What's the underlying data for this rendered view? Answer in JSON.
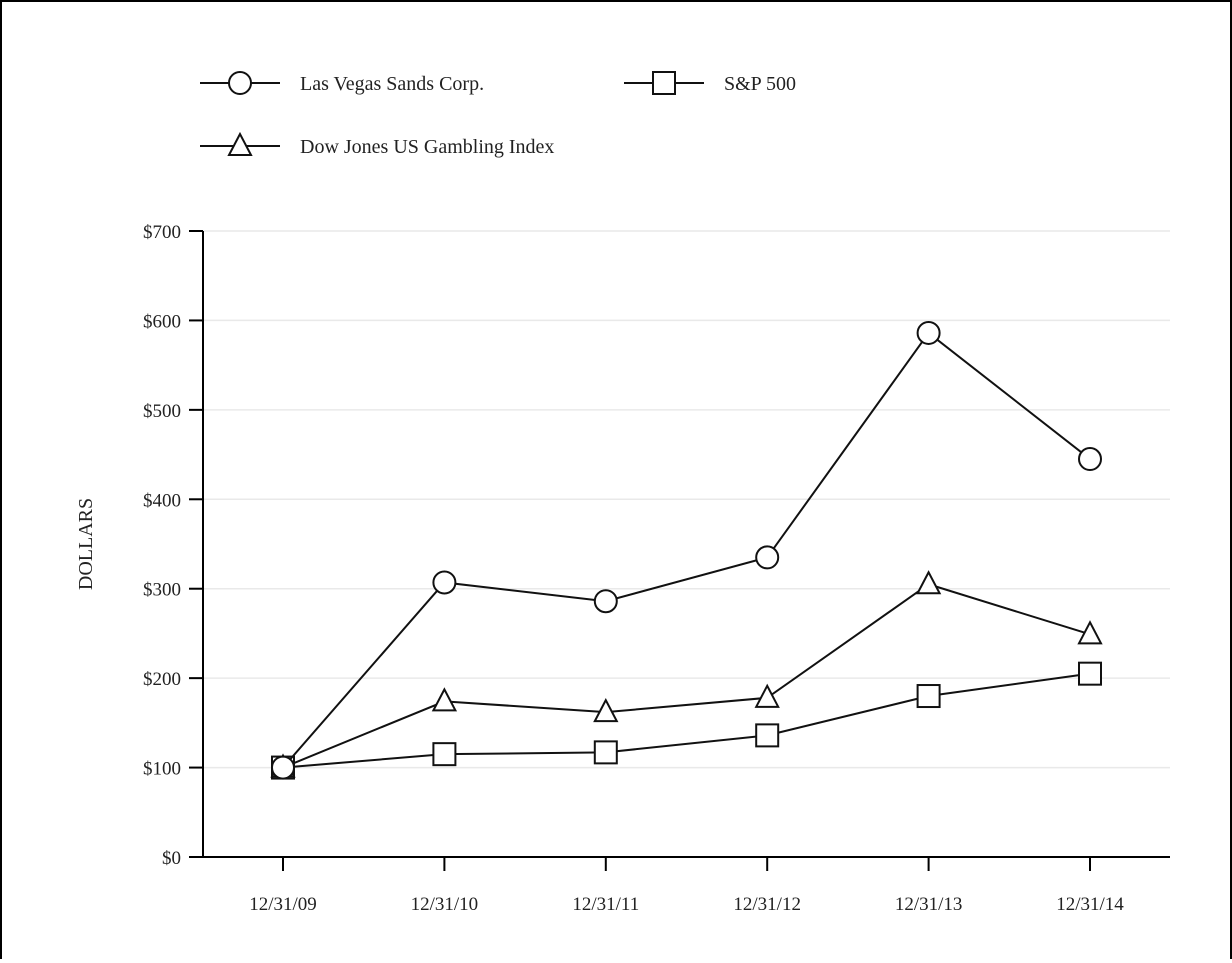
{
  "chart_data": {
    "type": "line",
    "title": "",
    "xlabel": "",
    "ylabel": "DOLLARS",
    "categories": [
      "12/31/09",
      "12/31/10",
      "12/31/11",
      "12/31/12",
      "12/31/13",
      "12/31/14"
    ],
    "ylim": [
      0,
      700
    ],
    "yticks": [
      0,
      100,
      200,
      300,
      400,
      500,
      600,
      700
    ],
    "ytick_labels": [
      "$0",
      "$100",
      "$200",
      "$300",
      "$400",
      "$500",
      "$600",
      "$700"
    ],
    "grid": true,
    "legend_position": "top-left",
    "series": [
      {
        "name": "Las Vegas Sands Corp.",
        "marker": "circle",
        "values": [
          100,
          307,
          286,
          335,
          586,
          445
        ]
      },
      {
        "name": "S&P 500",
        "marker": "square",
        "values": [
          100,
          115,
          117,
          136,
          180,
          205
        ]
      },
      {
        "name": "Dow Jones US Gambling Index",
        "marker": "triangle",
        "values": [
          100,
          174,
          162,
          178,
          305,
          249
        ]
      }
    ]
  }
}
